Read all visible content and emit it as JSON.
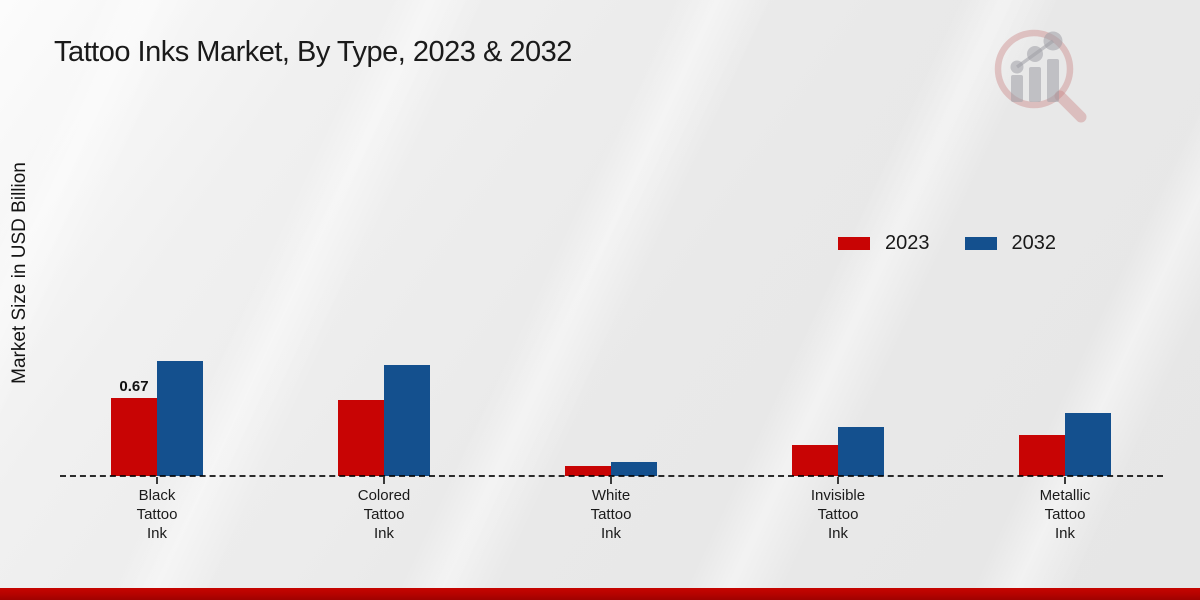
{
  "page": {
    "title": "Tattoo Inks Market, By Type, 2023 & 2032",
    "ylabel": "Market Size in USD Billion"
  },
  "legend": [
    {
      "label": "2023",
      "color": "#c80404"
    },
    {
      "label": "2032",
      "color": "#14508e"
    }
  ],
  "colors": {
    "series_2023": "#c80404",
    "series_2032": "#14508e",
    "footer_bar": "#b40300",
    "baseline": "#2e2e2e"
  },
  "watermark": {
    "icon": "magnifier-bar-chart-logo"
  },
  "chart_data": {
    "type": "bar",
    "title": "Tattoo Inks Market, By Type, 2023 & 2032",
    "ylabel": "Market Size in USD Billion",
    "xlabel": "",
    "grid": "off",
    "baseline_style": "dashed",
    "legend_position": "upper-right",
    "ylim": [
      0,
      1.2
    ],
    "categories": [
      [
        "Black",
        "Tattoo",
        "Ink"
      ],
      [
        "Colored",
        "Tattoo",
        "Ink"
      ],
      [
        "White",
        "Tattoo",
        "Ink"
      ],
      [
        "Invisible",
        "Tattoo",
        "Ink"
      ],
      [
        "Metallic",
        "Tattoo",
        "Ink"
      ]
    ],
    "series": [
      {
        "name": "2023",
        "color": "#c80404",
        "values": [
          0.67,
          0.65,
          0.09,
          0.27,
          0.35
        ],
        "data_labels": [
          "0.67",
          null,
          null,
          null,
          null
        ]
      },
      {
        "name": "2032",
        "color": "#14508e",
        "values": [
          0.99,
          0.95,
          0.12,
          0.42,
          0.54
        ],
        "data_labels": [
          null,
          null,
          null,
          null,
          null
        ]
      }
    ]
  }
}
